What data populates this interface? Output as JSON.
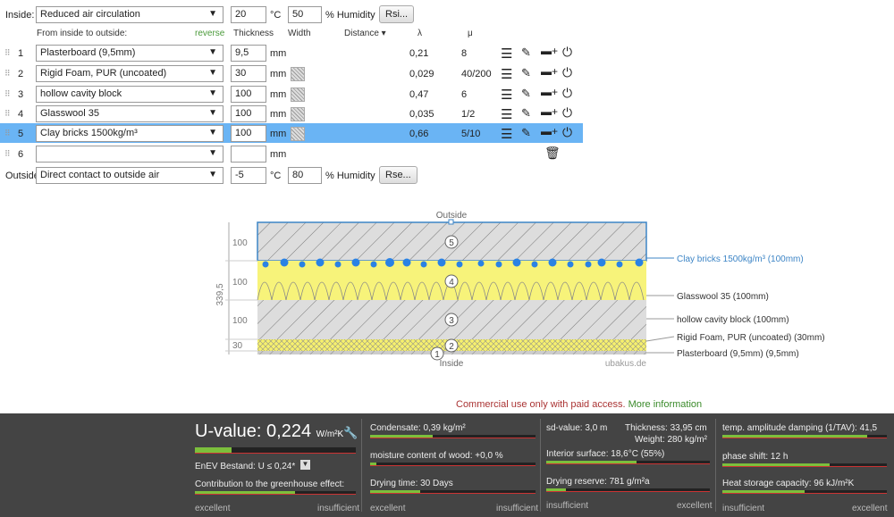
{
  "inside": {
    "label": "Inside:",
    "select": "Reduced air circulation",
    "temp": "20",
    "temp_unit": "°C",
    "humidity": "50",
    "humidity_unit": "% Humidity",
    "button": "Rsi..."
  },
  "headers": {
    "order": "From inside to outside:",
    "reverse": "reverse",
    "thickness": "Thickness",
    "width": "Width",
    "distance": "Distance ▾",
    "lambda": "λ",
    "mu": "μ"
  },
  "layers": [
    {
      "num": "1",
      "material": "Plasterboard (9,5mm)",
      "thickness": "9,5",
      "unit": "mm",
      "lambda": "0,21",
      "mu": "8"
    },
    {
      "num": "2",
      "material": "Rigid Foam, PUR (uncoated)",
      "thickness": "30",
      "unit": "mm",
      "lambda": "0,029",
      "mu": "40/200"
    },
    {
      "num": "3",
      "material": "hollow cavity block",
      "thickness": "100",
      "unit": "mm",
      "lambda": "0,47",
      "mu": "6"
    },
    {
      "num": "4",
      "material": "Glasswool 35",
      "thickness": "100",
      "unit": "mm",
      "lambda": "0,035",
      "mu": "1/2"
    },
    {
      "num": "5",
      "material": "Clay bricks 1500kg/m³",
      "thickness": "100",
      "unit": "mm",
      "lambda": "0,66",
      "mu": "5/10"
    },
    {
      "num": "6",
      "material": "",
      "thickness": "",
      "unit": "mm",
      "lambda": "",
      "mu": ""
    }
  ],
  "outside": {
    "label": "Outside",
    "select": "Direct contact to outside air",
    "temp": "-5",
    "temp_unit": "°C",
    "humidity": "80",
    "humidity_unit": "% Humidity",
    "button": "Rse..."
  },
  "diagram": {
    "outside": "Outside",
    "inside": "Inside",
    "watermark": "ubakus.de",
    "total": "339,5",
    "dims": [
      "100",
      "100",
      "100",
      "30"
    ],
    "labels": [
      "Clay bricks 1500kg/m³ (100mm)",
      "Glasswool 35 (100mm)",
      "hollow cavity block (100mm)",
      "Rigid Foam, PUR (uncoated) (30mm)",
      "Plasterboard (9,5mm) (9,5mm)"
    ],
    "numbers": [
      "5",
      "4",
      "3",
      "2",
      "1"
    ]
  },
  "notice": {
    "text": "Commercial use only with paid access.",
    "link": "More information"
  },
  "results": {
    "uvalue_label": "U-value:",
    "uvalue": "0,224",
    "uvalue_unit": "W/m²K",
    "enev": "EnEV Bestand: U ≤ 0,24*",
    "greenhouse": "Contribution to the greenhouse effect:",
    "excellent": "excellent",
    "insufficient": "insufficient",
    "condensate": "Condensate: 0,39 kg/m²",
    "moisture": "moisture content of wood: +0,0 %",
    "drying_time": "Drying time: 30 Days",
    "sd": "sd-value: 3,0 m",
    "thickness": "Thickness: 33,95 cm",
    "weight": "Weight: 280 kg/m²",
    "interior": "Interior surface: 18,6°C (55%)",
    "drying_reserve": "Drying reserve: 781 g/m²a",
    "temp_damping": "temp. amplitude damping (1/TAV): 41,5",
    "phase": "phase shift: 12 h",
    "heat_storage": "Heat storage capacity: 96 kJ/m²K"
  }
}
